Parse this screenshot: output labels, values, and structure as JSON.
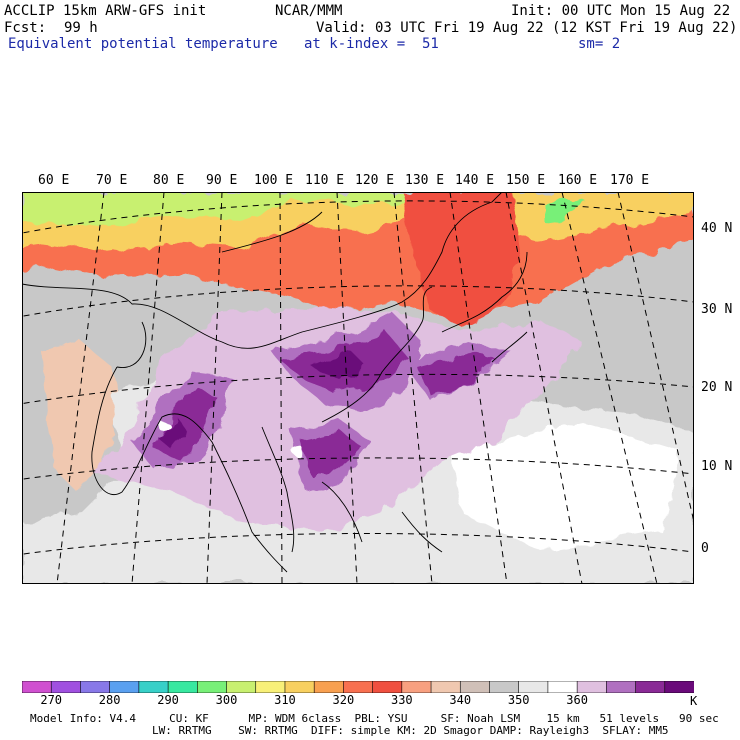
{
  "header": {
    "model_line": "ACCLIP 15km ARW-GFS init",
    "org": "NCAR/MMM",
    "init": "Init: 00 UTC Mon 15 Aug 22",
    "fcst_label": "Fcst:",
    "fcst_value": "99 h",
    "valid": "Valid: 03 UTC Fri 19 Aug 22 (12 KST Fri 19 Aug 22)",
    "field": "Equivalent potential temperature",
    "level": "at k-index =  51",
    "smooth": "sm= 2"
  },
  "map": {
    "lon_labels": [
      "60 E",
      "70 E",
      "80 E",
      "90 E",
      "100 E",
      "110 E",
      "120 E",
      "130 E",
      "140 E",
      "150 E",
      "160 E",
      "170 E"
    ],
    "lat_labels": [
      "40 N",
      "30 N",
      "20 N",
      "10 N",
      "0"
    ]
  },
  "colorbar": {
    "colors": [
      "#d050d0",
      "#a050e0",
      "#8878e8",
      "#5aa0f0",
      "#38d0c8",
      "#38e8a0",
      "#78f078",
      "#c8f070",
      "#f8f078",
      "#f8d060",
      "#f8a050",
      "#f87050",
      "#f05040",
      "#f8a080",
      "#f0c8b0",
      "#d0c0b8",
      "#c8c8c8",
      "#e8e8e8",
      "#ffffff",
      "#e0c0e0",
      "#b070c0",
      "#8a2a96",
      "#6a0a7a"
    ],
    "tick_labels": [
      "270",
      "280",
      "290",
      "300",
      "310",
      "320",
      "330",
      "340",
      "350",
      "360"
    ],
    "unit": "K"
  },
  "footer": {
    "line1": "Model Info: V4.4     CU: KF      MP: WDM 6class  PBL: YSU     SF: Noah LSM    15 km   51 levels   90 sec",
    "line2": "LW: RRTMG    SW: RRTMG  DIFF: simple KM: 2D Smagor DAMP: Rayleigh3  SFLAY: MM5"
  }
}
